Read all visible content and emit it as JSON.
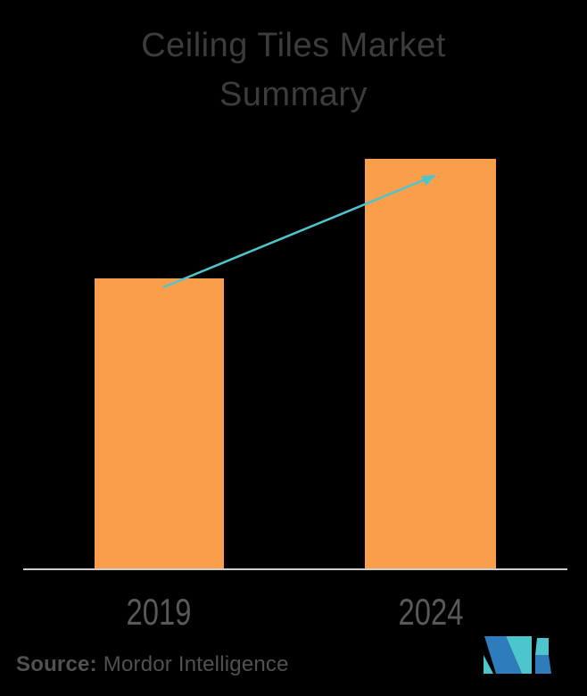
{
  "page": {
    "background_color": "#000000",
    "title_line1": "Ceiling Tiles Market",
    "title_line2": "Summary"
  },
  "chart_data": {
    "type": "bar",
    "title": "Ceiling Tiles Market Summary",
    "categories": [
      "2019",
      "2024"
    ],
    "values": [
      1,
      1.41
    ],
    "values_are_relative": true,
    "ylabel": "",
    "xlabel": "",
    "grid": false,
    "legend": false,
    "bar_color": "#F99F4B",
    "axis_line_color": "#CDCDCD",
    "category_label_color": "#595959",
    "title_color": "#3C3C3C",
    "trend_arrow": {
      "from_category": "2019",
      "to_category": "2024",
      "direction": "up-right",
      "color": "#4EC4CC"
    }
  },
  "footer": {
    "source_label": "Source:",
    "source_value": "Mordor Intelligence",
    "logo": {
      "name": "mordor-intelligence-logo",
      "teal": "#4CC5CD",
      "blue": "#2E7CBB"
    }
  }
}
